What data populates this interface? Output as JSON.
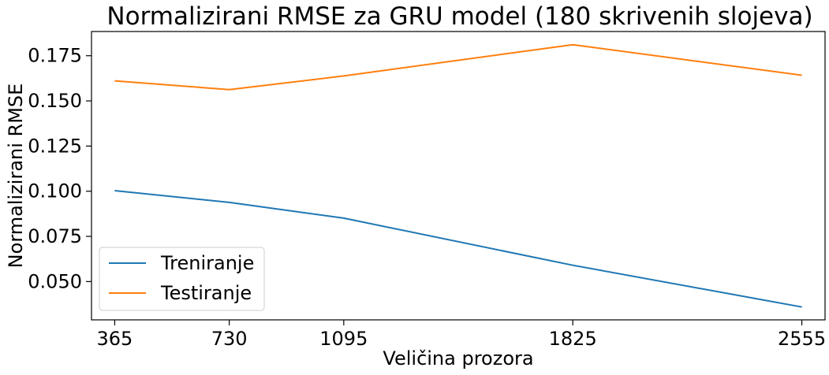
{
  "chart_data": {
    "type": "line",
    "title": "Normalizirani RMSE za GRU model (180 skrivenih slojeva)",
    "xlabel": "Veličina prozora",
    "ylabel": "Normalizirani RMSE",
    "x": [
      365,
      730,
      1095,
      1825,
      2555
    ],
    "x_ticks": [
      "365",
      "730",
      "1095",
      "1825",
      "2555"
    ],
    "y_ticks": [
      "0.050",
      "0.075",
      "0.100",
      "0.125",
      "0.150",
      "0.175"
    ],
    "y_tick_values": [
      0.05,
      0.075,
      0.1,
      0.125,
      0.15,
      0.175
    ],
    "xlim": [
      291,
      2629
    ],
    "ylim": [
      0.0288,
      0.1884
    ],
    "grid": false,
    "legend_position": "lower-left",
    "series": [
      {
        "name": "Treniranje",
        "color": "#1f77b4",
        "values": [
          0.1003,
          0.0938,
          0.0851,
          0.059,
          0.0359
        ]
      },
      {
        "name": "Testiranje",
        "color": "#ff7f0e",
        "values": [
          0.1611,
          0.1562,
          0.1638,
          0.1811,
          0.1642
        ]
      }
    ]
  }
}
